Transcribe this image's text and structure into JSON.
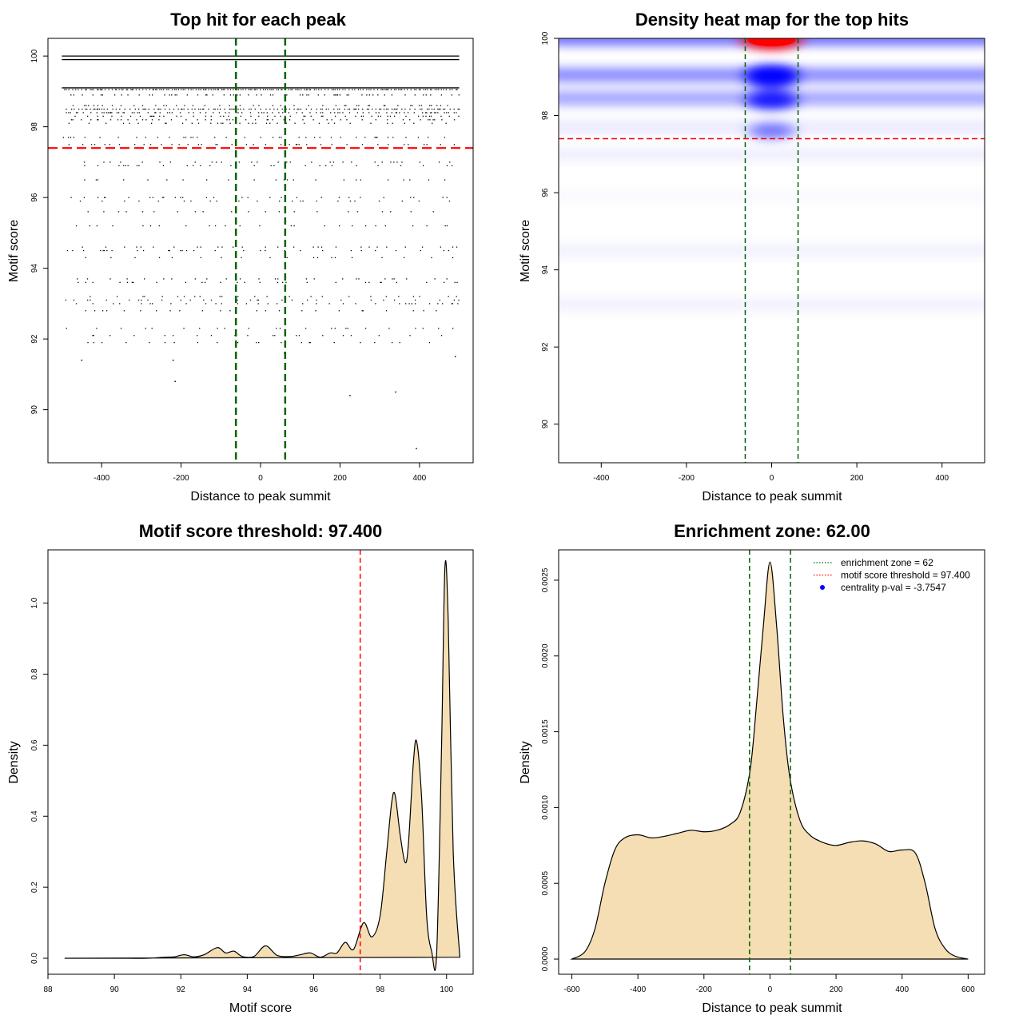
{
  "chart_data": [
    {
      "type": "scatter",
      "title": "Top hit for each peak",
      "xlabel": "Distance to peak summit",
      "ylabel": "Motif score",
      "xlim": [
        -535,
        535
      ],
      "ylim": [
        88.5,
        100.5
      ],
      "x_ticks": [
        -400,
        -200,
        0,
        200,
        400
      ],
      "y_ticks": [
        90,
        92,
        94,
        96,
        98,
        100
      ],
      "x_tick_labels": [
        "-400",
        "-200",
        "0",
        "200",
        "400"
      ],
      "y_tick_labels": [
        "90",
        "92",
        "94",
        "96",
        "98",
        "100"
      ],
      "point_color": "#000000",
      "enrichment_zone": [
        -62,
        62
      ],
      "zone_color": "#006400",
      "threshold": 97.4,
      "threshold_color": "#ff0000",
      "bands": [
        {
          "y": 100.0,
          "density": 1.0
        },
        {
          "y": 99.9,
          "density": 1.0
        },
        {
          "y": 99.1,
          "density": 1.0
        },
        {
          "y": 99.05,
          "density": 0.9
        },
        {
          "y": 98.9,
          "density": 0.6
        },
        {
          "y": 98.6,
          "density": 0.55
        },
        {
          "y": 98.5,
          "density": 0.85
        },
        {
          "y": 98.4,
          "density": 0.75
        },
        {
          "y": 98.3,
          "density": 0.6
        },
        {
          "y": 98.2,
          "density": 0.5
        },
        {
          "y": 98.1,
          "density": 0.35
        },
        {
          "y": 97.7,
          "density": 0.3
        },
        {
          "y": 97.5,
          "density": 0.5
        },
        {
          "y": 97.0,
          "density": 0.2
        },
        {
          "y": 96.9,
          "density": 0.2
        },
        {
          "y": 96.5,
          "density": 0.06
        },
        {
          "y": 96.0,
          "density": 0.08
        },
        {
          "y": 95.9,
          "density": 0.06
        },
        {
          "y": 95.6,
          "density": 0.04
        },
        {
          "y": 95.2,
          "density": 0.03
        },
        {
          "y": 94.6,
          "density": 0.2
        },
        {
          "y": 94.5,
          "density": 0.12
        },
        {
          "y": 94.3,
          "density": 0.05
        },
        {
          "y": 93.7,
          "density": 0.12
        },
        {
          "y": 93.6,
          "density": 0.04
        },
        {
          "y": 93.2,
          "density": 0.12
        },
        {
          "y": 93.1,
          "density": 0.08
        },
        {
          "y": 93.0,
          "density": 0.18
        },
        {
          "y": 92.8,
          "density": 0.03
        },
        {
          "y": 92.3,
          "density": 0.02
        },
        {
          "y": 92.1,
          "density": 0.03
        },
        {
          "y": 91.9,
          "density": 0.02
        }
      ],
      "isolated_points": [
        {
          "x": -450,
          "y": 91.4
        },
        {
          "x": -220,
          "y": 91.4
        },
        {
          "x": 60,
          "y": 91.6
        },
        {
          "x": 490,
          "y": 91.5
        },
        {
          "x": -215,
          "y": 90.8
        },
        {
          "x": 225,
          "y": 90.4
        },
        {
          "x": 340,
          "y": 90.5
        },
        {
          "x": 392,
          "y": 88.9
        }
      ]
    },
    {
      "type": "heatmap",
      "title": "Density heat map for the top hits",
      "xlabel": "Distance to peak summit",
      "ylabel": "Motif score",
      "xlim": [
        -500,
        500
      ],
      "ylim": [
        89,
        100
      ],
      "x_ticks": [
        -400,
        -200,
        0,
        200,
        400
      ],
      "y_ticks": [
        90,
        92,
        94,
        96,
        98,
        100
      ],
      "x_tick_labels": [
        "-400",
        "-200",
        "0",
        "200",
        "400"
      ],
      "y_tick_labels": [
        "90",
        "92",
        "94",
        "96",
        "98",
        "100"
      ],
      "color_low": "#ffffff",
      "color_mid": "#0000ff",
      "color_high": "#ff0000",
      "enrichment_zone": [
        -62,
        62
      ],
      "zone_color": "#006400",
      "threshold": 97.4,
      "threshold_color": "#ff0000",
      "hotspots": [
        {
          "x": 0,
          "y": 100.0,
          "intensity": 1.0
        },
        {
          "x": 0,
          "y": 99.05,
          "intensity": 0.6
        },
        {
          "x": 0,
          "y": 98.4,
          "intensity": 0.45
        },
        {
          "x": 0,
          "y": 98.9,
          "intensity": 0.25
        },
        {
          "x": 0,
          "y": 97.6,
          "intensity": 0.1
        }
      ],
      "bands": [
        {
          "y": 100.0,
          "intensity": 0.55
        },
        {
          "y": 99.05,
          "intensity": 0.45
        },
        {
          "y": 98.45,
          "intensity": 0.35
        },
        {
          "y": 97.7,
          "intensity": 0.08
        },
        {
          "y": 97.0,
          "intensity": 0.06
        },
        {
          "y": 94.5,
          "intensity": 0.05
        },
        {
          "y": 93.1,
          "intensity": 0.05
        },
        {
          "y": 95.9,
          "intensity": 0.02
        }
      ]
    },
    {
      "type": "area",
      "title": "Motif score threshold: 97.400",
      "xlabel": "Motif score",
      "ylabel": "Density",
      "xlim": [
        88,
        100.8
      ],
      "ylim": [
        -0.045,
        1.15
      ],
      "x_ticks": [
        88,
        90,
        92,
        94,
        96,
        98,
        100
      ],
      "y_ticks": [
        0.0,
        0.2,
        0.4,
        0.6,
        0.8,
        1.0
      ],
      "x_tick_labels": [
        "88",
        "90",
        "92",
        "94",
        "96",
        "98",
        "100"
      ],
      "y_tick_labels": [
        "0.0",
        "0.2",
        "0.4",
        "0.6",
        "0.8",
        "1.0"
      ],
      "fill_color": "#f5deb3",
      "line_color": "#000000",
      "threshold": 97.4,
      "threshold_color": "#ff0000",
      "x": [
        88.5,
        90.0,
        91.0,
        91.5,
        91.8,
        92.1,
        92.4,
        92.7,
        93.1,
        93.35,
        93.6,
        93.85,
        94.2,
        94.55,
        94.9,
        95.3,
        95.6,
        95.9,
        96.2,
        96.5,
        96.7,
        96.95,
        97.2,
        97.5,
        97.75,
        98.0,
        98.2,
        98.35,
        98.45,
        98.6,
        98.75,
        98.85,
        99.0,
        99.1,
        99.25,
        99.4,
        99.55,
        99.7,
        99.85,
        99.95,
        100.05,
        100.2,
        100.4
      ],
      "y": [
        0.0,
        0.0,
        0.0,
        0.003,
        0.004,
        0.01,
        0.004,
        0.01,
        0.03,
        0.015,
        0.02,
        0.005,
        0.005,
        0.035,
        0.008,
        0.005,
        0.01,
        0.015,
        0.003,
        0.015,
        0.015,
        0.045,
        0.025,
        0.1,
        0.06,
        0.12,
        0.3,
        0.44,
        0.46,
        0.35,
        0.27,
        0.32,
        0.55,
        0.61,
        0.45,
        0.12,
        0.02,
        0.01,
        0.6,
        1.1,
        0.95,
        0.3,
        0.003
      ]
    },
    {
      "type": "area",
      "title": "Enrichment zone: 62.00",
      "xlabel": "Distance to peak summit",
      "ylabel": "Density",
      "xlim": [
        -640,
        650
      ],
      "ylim": [
        -0.0001,
        0.0027
      ],
      "x_ticks": [
        -600,
        -400,
        -200,
        0,
        200,
        400,
        600
      ],
      "y_ticks": [
        0.0,
        0.0005,
        0.001,
        0.0015,
        0.002,
        0.0025
      ],
      "x_tick_labels": [
        "-600",
        "-400",
        "-200",
        "0",
        "200",
        "400",
        "600"
      ],
      "y_tick_labels": [
        "0.0000",
        "0.0005",
        "0.0010",
        "0.0015",
        "0.0020",
        "0.0025"
      ],
      "fill_color": "#f5deb3",
      "line_color": "#000000",
      "enrichment_zone": [
        -62,
        62
      ],
      "zone_color": "#006400",
      "x": [
        -600,
        -560,
        -530,
        -500,
        -470,
        -440,
        -400,
        -360,
        -320,
        -280,
        -240,
        -200,
        -160,
        -120,
        -90,
        -60,
        -40,
        -20,
        0,
        20,
        40,
        60,
        90,
        120,
        160,
        200,
        240,
        280,
        320,
        360,
        400,
        440,
        470,
        500,
        530,
        560,
        600
      ],
      "y": [
        0.0,
        5e-05,
        0.0002,
        0.0005,
        0.00072,
        0.0008,
        0.00082,
        0.0008,
        0.00081,
        0.00083,
        0.00085,
        0.00084,
        0.00085,
        0.00089,
        0.00097,
        0.00125,
        0.0017,
        0.0022,
        0.00262,
        0.0022,
        0.0016,
        0.0012,
        0.00092,
        0.00082,
        0.00077,
        0.00075,
        0.00077,
        0.00078,
        0.00076,
        0.00071,
        0.00072,
        0.0007,
        0.0005,
        0.0002,
        7e-05,
        2e-05,
        0.0
      ],
      "legend": {
        "placement": "top-right",
        "entries": [
          {
            "label": "enrichment zone = 62",
            "color": "#006400",
            "style": "dotted-line"
          },
          {
            "label": "motif score threshold = 97.400",
            "color": "#ff0000",
            "style": "dotted-line"
          },
          {
            "label": "centrality p-val = -3.7547",
            "color": "#0000ff",
            "style": "point"
          }
        ]
      }
    }
  ]
}
